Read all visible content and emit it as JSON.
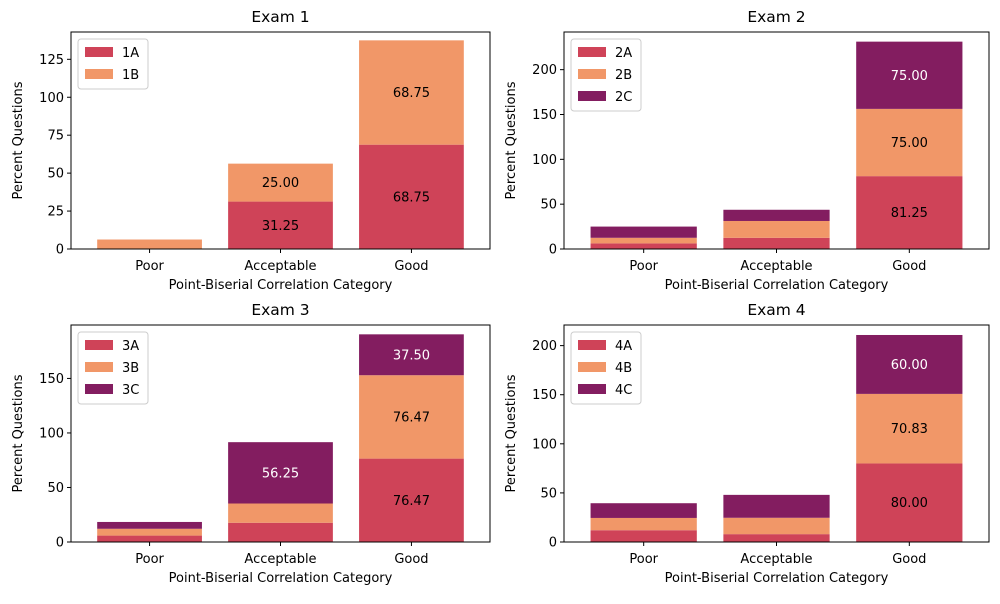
{
  "colors": {
    "A": "#cf4358",
    "B": "#f19768",
    "C": "#831d60",
    "axis": "#000000",
    "label_dark": "#000000",
    "label_light": "#ffffff"
  },
  "chart_data": [
    {
      "type": "bar",
      "stacked": true,
      "title": "Exam 1",
      "xlabel": "Point-Biserial Correlation Category",
      "ylabel": "Percent Questions",
      "categories": [
        "Poor",
        "Acceptable",
        "Good"
      ],
      "ylim": [
        0,
        143
      ],
      "yticks": [
        0,
        25,
        50,
        75,
        100,
        125
      ],
      "legend_position": "top-left",
      "series": [
        {
          "name": "1A",
          "color_key": "A",
          "values": [
            0,
            31.25,
            68.75
          ],
          "labels": [
            "",
            "31.25",
            "68.75"
          ]
        },
        {
          "name": "1B",
          "color_key": "B",
          "values": [
            6.25,
            25.0,
            68.75
          ],
          "labels": [
            "",
            "25.00",
            "68.75"
          ]
        }
      ]
    },
    {
      "type": "bar",
      "stacked": true,
      "title": "Exam 2",
      "xlabel": "Point-Biserial Correlation Category",
      "ylabel": "Percent Questions",
      "categories": [
        "Poor",
        "Acceptable",
        "Good"
      ],
      "ylim": [
        0,
        242
      ],
      "yticks": [
        0,
        50,
        100,
        150,
        200
      ],
      "legend_position": "top-left",
      "series": [
        {
          "name": "2A",
          "color_key": "A",
          "values": [
            6.25,
            12.5,
            81.25
          ],
          "labels": [
            "",
            "",
            "81.25"
          ]
        },
        {
          "name": "2B",
          "color_key": "B",
          "values": [
            6.25,
            18.75,
            75.0
          ],
          "labels": [
            "",
            "",
            "75.00"
          ]
        },
        {
          "name": "2C",
          "color_key": "C",
          "values": [
            12.5,
            12.5,
            75.0
          ],
          "labels": [
            "",
            "",
            "75.00"
          ]
        }
      ]
    },
    {
      "type": "bar",
      "stacked": true,
      "title": "Exam 3",
      "xlabel": "Point-Biserial Correlation Category",
      "ylabel": "Percent Questions",
      "categories": [
        "Poor",
        "Acceptable",
        "Good"
      ],
      "ylim": [
        0,
        199
      ],
      "yticks": [
        0,
        50,
        100,
        150
      ],
      "legend_position": "top-left",
      "series": [
        {
          "name": "3A",
          "color_key": "A",
          "values": [
            5.88,
            17.65,
            76.47
          ],
          "labels": [
            "",
            "",
            "76.47"
          ]
        },
        {
          "name": "3B",
          "color_key": "B",
          "values": [
            6.25,
            17.65,
            76.47
          ],
          "labels": [
            "",
            "",
            "76.47"
          ]
        },
        {
          "name": "3C",
          "color_key": "C",
          "values": [
            6.25,
            56.25,
            37.5
          ],
          "labels": [
            "",
            "56.25",
            "37.50"
          ]
        }
      ]
    },
    {
      "type": "bar",
      "stacked": true,
      "title": "Exam 4",
      "xlabel": "Point-Biserial Correlation Category",
      "ylabel": "Percent Questions",
      "categories": [
        "Poor",
        "Acceptable",
        "Good"
      ],
      "ylim": [
        0,
        221
      ],
      "yticks": [
        0,
        50,
        100,
        150,
        200
      ],
      "legend_position": "top-left",
      "series": [
        {
          "name": "4A",
          "color_key": "A",
          "values": [
            12.0,
            8.0,
            80.0
          ],
          "labels": [
            "",
            "",
            "80.00"
          ]
        },
        {
          "name": "4B",
          "color_key": "B",
          "values": [
            12.5,
            16.67,
            70.83
          ],
          "labels": [
            "",
            "",
            "70.83"
          ]
        },
        {
          "name": "4C",
          "color_key": "C",
          "values": [
            15.0,
            23.33,
            60.0
          ],
          "labels": [
            "",
            "",
            "60.00"
          ]
        }
      ]
    }
  ]
}
